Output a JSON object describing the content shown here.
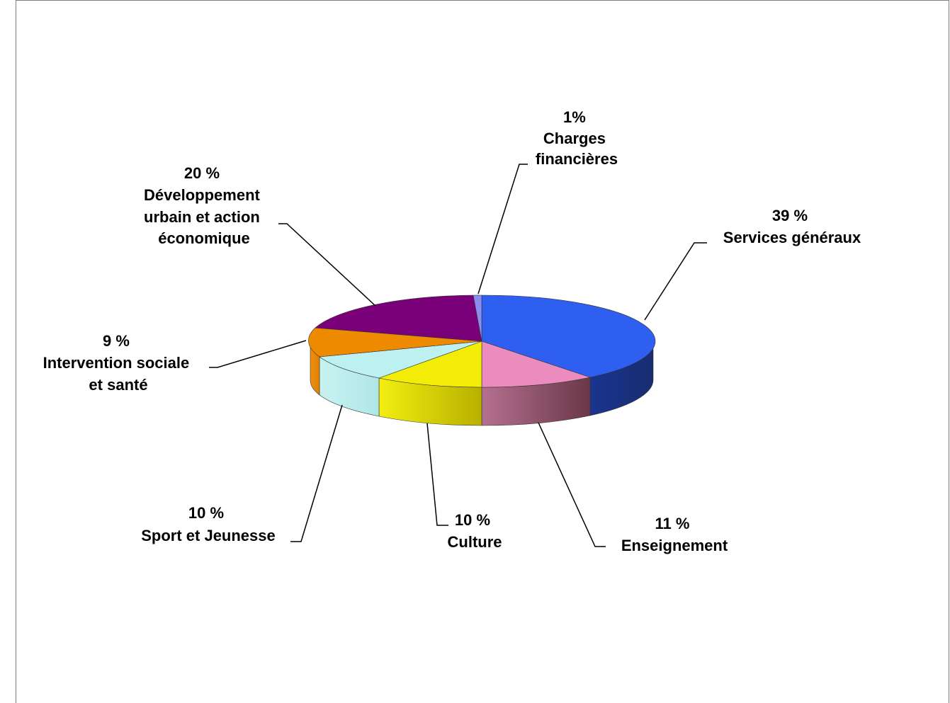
{
  "chart_data": {
    "type": "pie",
    "title": "",
    "slices": [
      {
        "label": "Services généraux",
        "percent_text": "39 %",
        "value": 39,
        "color": "#2f5ff0",
        "side_color": "#1e3a8a"
      },
      {
        "label": "Enseignement",
        "percent_text": "11 %",
        "value": 11,
        "color": "#ec8cbe",
        "side_color": "#a0607f"
      },
      {
        "label": "Culture",
        "percent_text": "10 %",
        "value": 10,
        "color": "#f2ec07",
        "side_color": "#c9c20a"
      },
      {
        "label": "Sport et Jeunesse",
        "percent_text": "10 %",
        "value": 10,
        "color": "#bdf0f0",
        "side_color": "#b3e8e8"
      },
      {
        "label": "Intervention sociale et santé",
        "percent_text": "9 %",
        "value": 9,
        "color": "#ee8a00",
        "side_color": "#e88a08"
      },
      {
        "label": "Développement urbain et action économique",
        "percent_text": "20 %",
        "value": 20,
        "color": "#7a0079",
        "side_color": "#4e004d"
      },
      {
        "label": "Charges financières",
        "percent_text": "1%",
        "value": 1,
        "color": "#8a8ef0",
        "side_color": "#5a5eb0"
      }
    ]
  }
}
